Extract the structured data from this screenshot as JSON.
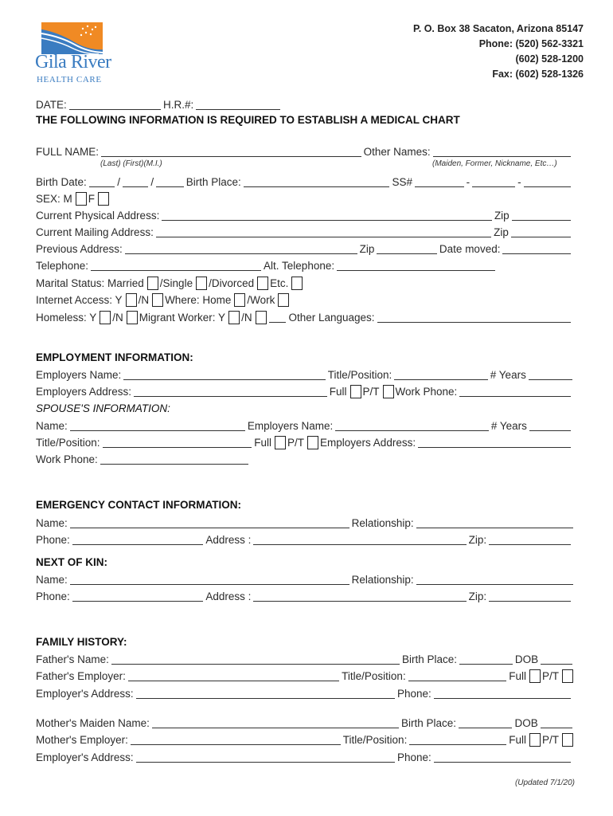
{
  "logo": {
    "name": "Gila River",
    "sub": "HEALTH CARE",
    "colors": {
      "orange": "#f08a24",
      "blue": "#3a7cc1"
    }
  },
  "contact": {
    "address": "P. O. Box 38 Sacaton, Arizona  85147",
    "phone": "Phone: (520) 562-3321",
    "phone2": "(602) 528-1200",
    "fax": "Fax: (602) 528-1326"
  },
  "intro": {
    "date": "DATE:",
    "hr": "H.R.#:",
    "title": "THE FOLLOWING INFORMATION IS REQUIRED TO ESTABLISH A MEDICAL CHART"
  },
  "personal": {
    "full_name": "FULL NAME:",
    "other_names": "Other Names:",
    "name_hint": "(Last) (First)(M.I.)",
    "other_hint": "(Maiden, Former, Nickname, Etc…)",
    "birth_date": "Birth Date:",
    "slash": "/",
    "birth_place": "Birth Place:",
    "ss": "SS#",
    "dash": "-",
    "sex": "SEX: M",
    "f": "F",
    "physical": "Current Physical Address:",
    "zip": "Zip",
    "mailing": "Current Mailing Address:",
    "previous": "Previous Address:",
    "date_moved": "Date moved:",
    "telephone": "Telephone:",
    "alt_telephone": "Alt. Telephone:",
    "marital": "Marital Status: Married",
    "single": "/Single",
    "divorced": "/Divorced",
    "etc": "Etc.",
    "internet": "Internet Access: Y",
    "n": "/N",
    "where_home": "Where: Home",
    "work": "/Work",
    "homeless": "Homeless: Y",
    "migrant": "Migrant Worker: Y",
    "languages": "Other Languages:"
  },
  "employment": {
    "header": "EMPLOYMENT INFORMATION:",
    "employers_name": "Employers Name:",
    "title_position": "Title/Position:",
    "years": "# Years",
    "employers_address": "Employers Address:",
    "full": "Full",
    "pt": "P/T",
    "work_phone": "Work Phone:",
    "spouse_header": "SPOUSE'S INFORMATION:",
    "name": "Name:",
    "employers_address2": "Employers Address:"
  },
  "emergency": {
    "header": "EMERGENCY CONTACT INFORMATION:",
    "name": "Name:",
    "relationship": "Relationship:",
    "phone": "Phone:",
    "address": "Address :",
    "zip": "Zip:"
  },
  "kin": {
    "header": "NEXT OF KIN:"
  },
  "family": {
    "header": "FAMILY HISTORY:",
    "fathers_name": "Father's Name:",
    "birth_place": "Birth Place:",
    "dob": "DOB",
    "fathers_employer": "Father's Employer:",
    "title_position": "Title/Position:",
    "full": "Full",
    "pt": "P/T",
    "employers_address": "Employer's Address:",
    "phone": "Phone:",
    "mothers_name": "Mother's Maiden Name:",
    "mothers_employer": "Mother's Employer:"
  },
  "footer": {
    "updated": "(Updated 7/1/20)"
  }
}
